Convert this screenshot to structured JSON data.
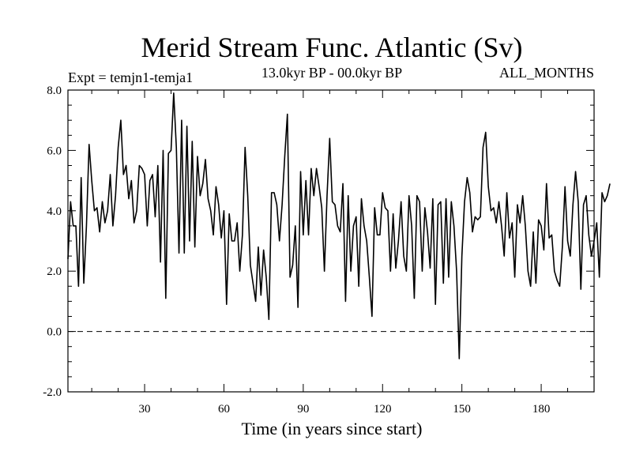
{
  "chart_data": {
    "type": "line",
    "title": "Merid Stream Func. Atlantic (Sv)",
    "subtitle_left": "Expt = temjn1-temja1",
    "subtitle_center": "13.0kyr BP - 00.0kyr BP",
    "subtitle_right": "ALL_MONTHS",
    "xlabel": "Time (in years since start)",
    "ylabel": "",
    "xlim": [
      1,
      200
    ],
    "ylim": [
      -2.0,
      8.0
    ],
    "x_ticks": [
      30,
      60,
      90,
      120,
      150,
      180
    ],
    "x_tick_labels": [
      "30",
      "60",
      "90",
      "120",
      "150",
      "180"
    ],
    "y_ticks": [
      -2,
      0,
      2,
      4,
      6,
      8
    ],
    "y_tick_labels": [
      "-2.0",
      "0.0",
      "2.0",
      "4.0",
      "6.0",
      "8.0"
    ],
    "reference_line": {
      "y": 0.0,
      "style": "dashed"
    },
    "grid": false,
    "series": [
      {
        "name": "Merid Stream Func. Atlantic",
        "color": "#000000",
        "x_start": 1,
        "x_step": 1,
        "values": [
          2.4,
          4.3,
          3.5,
          3.5,
          1.5,
          5.1,
          1.6,
          3.5,
          6.2,
          5.0,
          4.0,
          4.1,
          3.3,
          4.3,
          3.6,
          4.0,
          5.2,
          3.5,
          4.5,
          6.1,
          7.0,
          5.2,
          5.5,
          4.4,
          5.0,
          3.6,
          4.0,
          5.5,
          5.4,
          5.2,
          3.5,
          5.0,
          5.2,
          3.8,
          5.5,
          2.3,
          6.0,
          1.1,
          5.9,
          6.0,
          7.9,
          6.1,
          2.6,
          7.0,
          2.6,
          6.8,
          3.0,
          6.3,
          2.8,
          5.8,
          4.5,
          4.9,
          5.7,
          4.4,
          4.0,
          3.2,
          4.8,
          4.2,
          3.1,
          4.0,
          0.9,
          3.9,
          3.0,
          3.0,
          3.6,
          2.0,
          3.2,
          6.1,
          4.5,
          2.2,
          1.6,
          1.0,
          2.8,
          1.2,
          2.7,
          1.8,
          0.4,
          4.6,
          4.6,
          4.2,
          3.0,
          4.2,
          5.8,
          7.2,
          1.8,
          2.2,
          3.5,
          0.8,
          5.3,
          3.2,
          5.0,
          3.2,
          5.4,
          4.5,
          5.4,
          4.8,
          4.1,
          2.0,
          4.5,
          6.4,
          4.3,
          4.2,
          3.5,
          3.3,
          4.9,
          1.0,
          4.5,
          2.0,
          3.5,
          3.8,
          1.5,
          4.4,
          3.5,
          3.0,
          1.8,
          0.5,
          4.1,
          3.2,
          3.2,
          4.6,
          4.1,
          4.0,
          2.0,
          3.9,
          2.1,
          3.0,
          4.3,
          2.5,
          2.0,
          4.5,
          3.5,
          1.1,
          4.5,
          4.3,
          2.0,
          4.1,
          3.3,
          2.1,
          4.4,
          0.9,
          4.2,
          4.3,
          1.6,
          4.4,
          1.8,
          4.3,
          3.5,
          2.0,
          -0.9,
          2.5,
          4.3,
          5.1,
          4.6,
          3.3,
          3.8,
          3.7,
          3.8,
          6.1,
          6.6,
          4.8,
          4.0,
          4.1,
          3.6,
          4.3,
          3.5,
          2.5,
          4.6,
          3.1,
          3.6,
          1.8,
          4.2,
          3.6,
          4.5,
          3.5,
          2.0,
          1.5,
          3.3,
          1.6,
          3.7,
          3.5,
          2.7,
          4.9,
          3.1,
          3.2,
          2.0,
          1.7,
          1.5,
          2.8,
          4.8,
          3.0,
          2.5,
          4.2,
          5.3,
          4.3,
          1.4,
          4.2,
          4.5,
          3.2,
          2.5,
          3.0,
          3.6,
          1.8,
          4.6,
          4.3,
          4.5,
          4.9
        ]
      }
    ]
  }
}
